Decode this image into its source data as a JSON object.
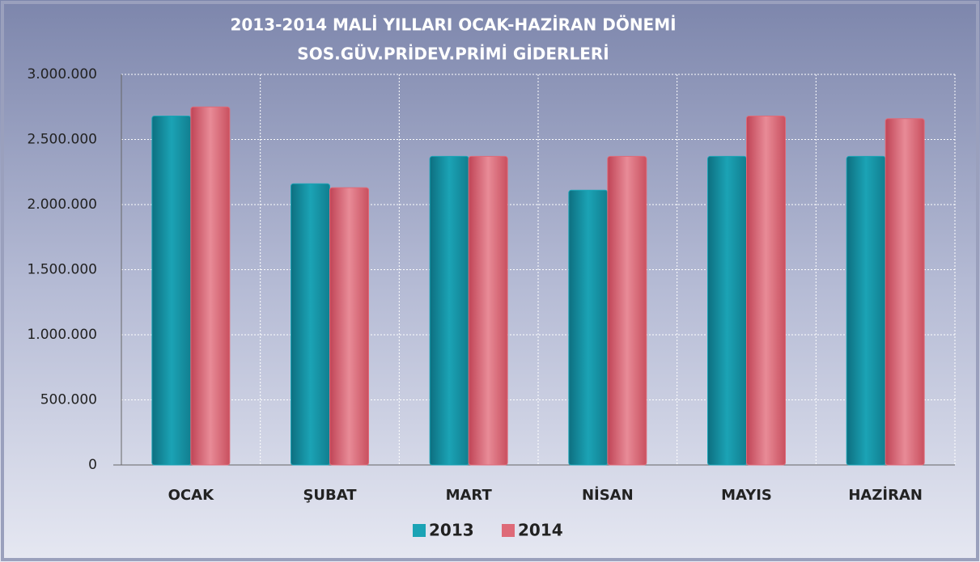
{
  "chart_data": {
    "type": "bar",
    "title": [
      "2013-2014 MALİ YILLARI OCAK-HAZİRAN DÖNEMİ",
      "SOS.GÜV.PRİDEV.PRİMİ GİDERLERİ"
    ],
    "categories": [
      "OCAK",
      "ŞUBAT",
      "MART",
      "NİSAN",
      "MAYIS",
      "HAZİRAN"
    ],
    "series": [
      {
        "name": "2013",
        "color": "#1ba3b5",
        "values": [
          2680000,
          2160000,
          2370000,
          2110000,
          2370000,
          2370000
        ]
      },
      {
        "name": "2014",
        "color": "#de6a78",
        "values": [
          2750000,
          2130000,
          2370000,
          2370000,
          2680000,
          2660000
        ]
      }
    ],
    "ylim": [
      0,
      3000000
    ],
    "yticks": [
      0,
      {
        "value": 500000,
        "label": "500.000"
      },
      {
        "value": 1000000,
        "label": "1.000.000"
      },
      {
        "value": 1500000,
        "label": "1.500.000"
      },
      {
        "value": 2000000,
        "label": "2.000.000"
      },
      {
        "value": 2500000,
        "label": "2.500.000"
      },
      {
        "value": 3000000,
        "label": "3.000.000"
      }
    ],
    "grid": true,
    "legend": "bottom"
  }
}
